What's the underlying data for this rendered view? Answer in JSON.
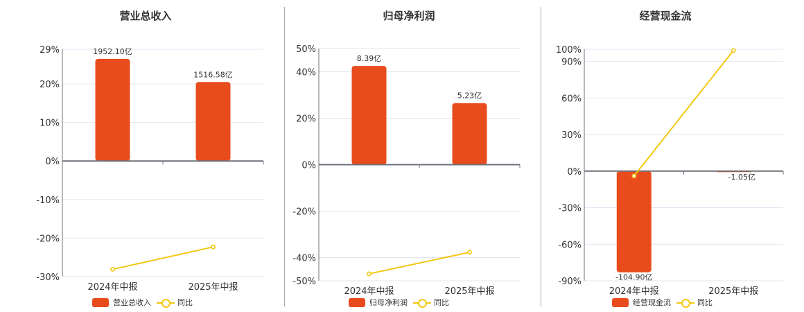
{
  "colors": {
    "bar": "#e84c1c",
    "line": "#f2c811",
    "grid": "#e0e6f1",
    "axis": "#6e7079",
    "text": "#333333"
  },
  "legend": {
    "yoy_label": "同比"
  },
  "chart_data": [
    {
      "type": "bar",
      "title": "营业总收入",
      "categories": [
        "2024年中报",
        "2025年中报"
      ],
      "series": [
        {
          "name": "营业总收入",
          "type": "bar",
          "values": [
            1952.1,
            1516.58
          ],
          "labels": [
            "1952.10亿",
            "1516.58亿"
          ],
          "unit": "亿"
        },
        {
          "name": "同比",
          "type": "line",
          "values": [
            -28.1,
            -22.3
          ],
          "unit": "%"
        }
      ],
      "yaxis": {
        "ticks": [
          "29%",
          "20%",
          "10%",
          "0%",
          "-10%",
          "-20%",
          "-30%"
        ],
        "ylim": [
          -30,
          29
        ]
      },
      "bar_pct_heights": [
        26.5,
        20.5
      ],
      "legend_position": "bottom"
    },
    {
      "type": "bar",
      "title": "归母净利润",
      "categories": [
        "2024年中报",
        "2025年中报"
      ],
      "series": [
        {
          "name": "归母净利润",
          "type": "bar",
          "values": [
            8.39,
            5.23
          ],
          "labels": [
            "8.39亿",
            "5.23亿"
          ],
          "unit": "亿"
        },
        {
          "name": "同比",
          "type": "line",
          "values": [
            -47.0,
            -37.7
          ],
          "unit": "%"
        }
      ],
      "yaxis": {
        "ticks": [
          "50%",
          "40%",
          "20%",
          "0%",
          "-20%",
          "-40%",
          "-50%"
        ],
        "ylim": [
          -50,
          50
        ]
      },
      "bar_pct_heights": [
        42.5,
        26.5
      ],
      "legend_position": "bottom"
    },
    {
      "type": "bar",
      "title": "经营现金流",
      "categories": [
        "2024年中报",
        "2025年中报"
      ],
      "series": [
        {
          "name": "经营现金流",
          "type": "bar",
          "values": [
            -104.9,
            -1.05
          ],
          "labels": [
            "-104.90亿",
            "-1.05亿"
          ],
          "unit": "亿"
        },
        {
          "name": "同比",
          "type": "line",
          "values": [
            -4.0,
            99.0
          ],
          "unit": "%"
        }
      ],
      "yaxis": {
        "ticks": [
          "100%",
          "90%",
          "60%",
          "30%",
          "0%",
          "-30%",
          "-60%",
          "-90%"
        ],
        "ylim": [
          -90,
          100
        ]
      },
      "bar_pct_heights": [
        -83.0,
        -0.8
      ],
      "legend_position": "bottom"
    }
  ]
}
